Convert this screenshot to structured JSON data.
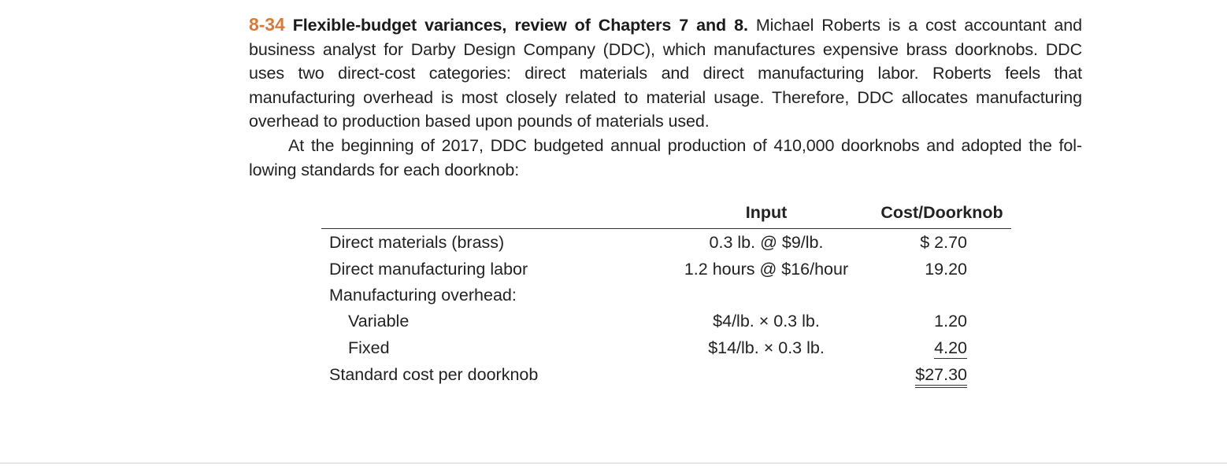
{
  "problem": {
    "number": "8-34",
    "heading": "Flexible-budget variances, review of Chapters 7 and 8.",
    "paragraph1_body": " Michael Roberts is a cost accountant and business analyst for Darby Design Company (DDC), which manufactures expensive brass doorknobs. DDC uses two direct-cost categories: direct materials and direct manufacturing labor. Roberts feels that manufacturing overhead is most closely related to material usage. Therefore, DDC allocates manufacturing overhead to production based upon pounds of materials used.",
    "paragraph2": "At the beginning of 2017, DDC budgeted annual production of 410,000 doorknobs and adopted the fol-lowing standards for each doorknob:"
  },
  "table": {
    "header_input": "Input",
    "header_cost": "Cost/Doorknob",
    "rows": [
      {
        "label": "Direct materials (brass)",
        "input": "0.3 lb. @ $9/lb.",
        "cost": "$ 2.70"
      },
      {
        "label": "Direct manufacturing labor",
        "input": "1.2 hours @ $16/hour",
        "cost": "19.20"
      },
      {
        "label": "Manufacturing overhead:",
        "input": "",
        "cost": ""
      },
      {
        "label": "Variable",
        "input": "$4/lb. × 0.3 lb.",
        "cost": "1.20"
      },
      {
        "label": "Fixed",
        "input": "$14/lb. × 0.3 lb.",
        "cost": "4.20"
      },
      {
        "label": "Standard cost per doorknob",
        "input": "",
        "cost": "$27.30"
      }
    ]
  }
}
